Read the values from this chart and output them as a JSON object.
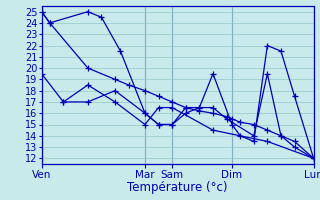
{
  "xlabel": "Température (°c)",
  "bg_color": "#c8eaea",
  "grid_color": "#90c8c8",
  "line_color": "#0000bb",
  "vline_color": "#4444aa",
  "ylim": [
    11.5,
    25.5
  ],
  "yticks": [
    12,
    13,
    14,
    15,
    16,
    17,
    18,
    19,
    20,
    21,
    22,
    23,
    24,
    25
  ],
  "xlim": [
    0,
    100
  ],
  "xtick_pos": [
    0,
    38,
    48,
    70,
    100
  ],
  "xtick_lab": [
    "Ven",
    "Mar",
    "Sam",
    "Dim",
    "Lun"
  ],
  "series": [
    {
      "x": [
        0,
        3,
        17,
        27,
        32,
        38,
        43,
        48,
        53,
        58,
        63,
        68,
        70,
        73,
        78,
        83,
        88,
        93,
        100
      ],
      "y": [
        25,
        24,
        20,
        19,
        18.5,
        18,
        17.5,
        17,
        16.5,
        16.2,
        16,
        15.7,
        15.5,
        15.2,
        15,
        14.5,
        14,
        13.5,
        12
      ]
    },
    {
      "x": [
        0,
        3,
        17,
        22,
        29,
        38,
        43,
        48,
        53,
        58,
        63,
        70,
        73,
        78,
        83,
        88,
        93,
        100
      ],
      "y": [
        25,
        24,
        25,
        24.5,
        21.5,
        16,
        15,
        15,
        16.5,
        16.5,
        19.5,
        15,
        14,
        13.5,
        22,
        21.5,
        17.5,
        12
      ]
    },
    {
      "x": [
        0,
        8,
        17,
        27,
        38,
        43,
        48,
        53,
        58,
        63,
        68,
        78,
        83,
        88,
        93,
        100
      ],
      "y": [
        19.5,
        17,
        17,
        18,
        16,
        15,
        15,
        16,
        16.5,
        16.5,
        15.5,
        14,
        19.5,
        14,
        13,
        12
      ]
    },
    {
      "x": [
        8,
        17,
        27,
        38,
        43,
        48,
        63,
        83,
        100
      ],
      "y": [
        17,
        18.5,
        17,
        15,
        16.5,
        16.5,
        14.5,
        13.5,
        12
      ]
    }
  ]
}
